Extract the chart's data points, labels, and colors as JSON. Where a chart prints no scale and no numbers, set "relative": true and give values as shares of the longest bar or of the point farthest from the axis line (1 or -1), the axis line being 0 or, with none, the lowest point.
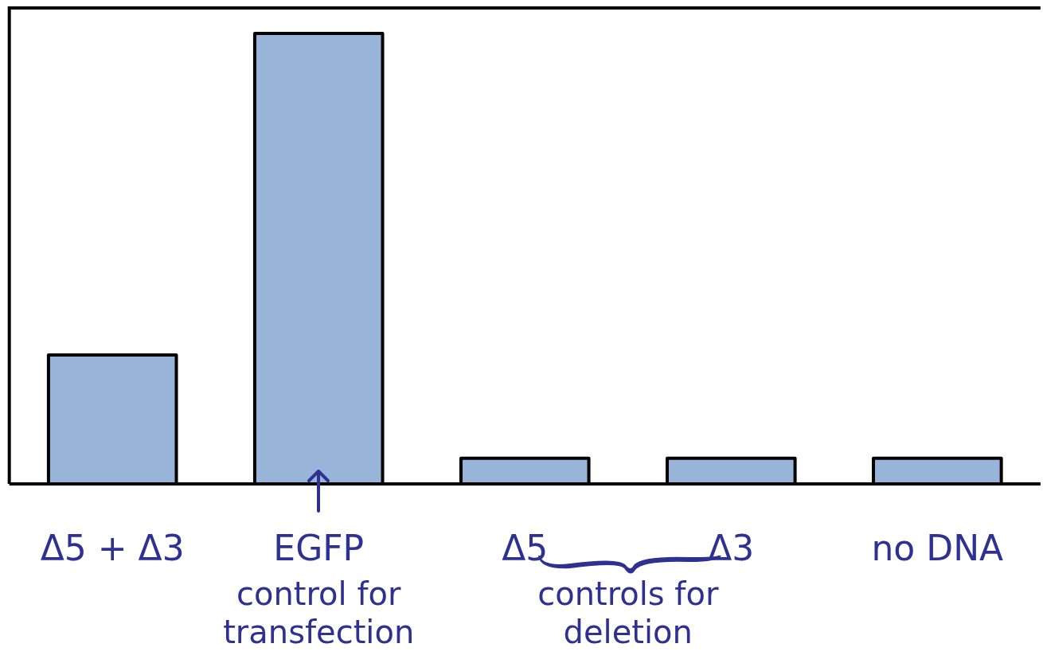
{
  "chart_data": {
    "type": "bar",
    "relative": true,
    "categories": [
      "Δ5 + Δ3",
      "EGFP",
      "Δ5",
      "Δ3",
      "no DNA"
    ],
    "values": [
      0.286,
      1,
      0.057,
      0.057,
      0.057
    ],
    "color": "#98b4d8",
    "annotations": [
      "control for transfection",
      "controls for deletion"
    ]
  }
}
